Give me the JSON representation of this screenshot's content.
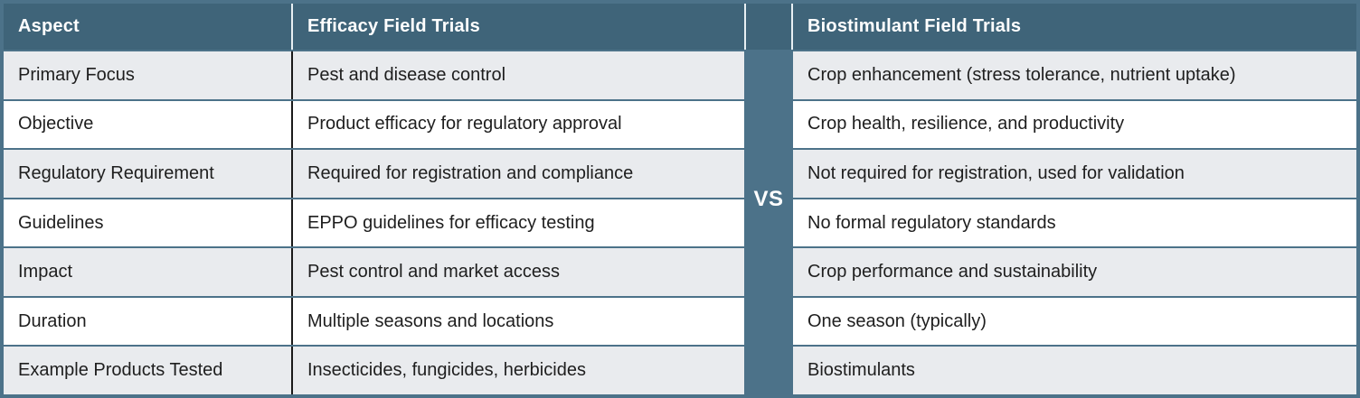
{
  "title": "Efficacy vs Biostimulant Field Trials comparison table",
  "header": {
    "aspect_label": "Aspect",
    "efficacy_label": "Efficacy Field Trials",
    "biostimulant_label": "Biostimulant Field Trials"
  },
  "divider": {
    "label": "VS"
  },
  "rows": [
    {
      "aspect": "Primary Focus",
      "efficacy": "Pest and disease control",
      "biostimulant": "Crop enhancement (stress tolerance, nutrient uptake)"
    },
    {
      "aspect": "Objective",
      "efficacy": "Product efficacy for regulatory approval",
      "biostimulant": "Crop health, resilience, and productivity"
    },
    {
      "aspect": "Regulatory Requirement",
      "efficacy": "Required for registration and compliance",
      "biostimulant": "Not required for registration, used for validation"
    },
    {
      "aspect": "Guidelines",
      "efficacy": "EPPO guidelines for efficacy testing",
      "biostimulant": "No formal regulatory standards"
    },
    {
      "aspect": "Impact",
      "efficacy": "Pest control and market access",
      "biostimulant": "Crop performance and sustainability"
    },
    {
      "aspect": "Duration",
      "efficacy": "Multiple seasons and locations",
      "biostimulant": "One season (typically)"
    },
    {
      "aspect": "Example Products Tested",
      "efficacy": "Insecticides, fungicides, herbicides",
      "biostimulant": "Biostimulants"
    }
  ],
  "colors": {
    "header_bg": "#3F6479",
    "band_bg": "#4C7289",
    "row_stripe_bg": "#E9EBEE",
    "row_bg": "#FFFFFF",
    "header_text": "#FFFFFF",
    "body_text": "#1E1E1E",
    "body_column_divider": "#1A1A1A",
    "header_column_divider": "#E7EFF3"
  }
}
